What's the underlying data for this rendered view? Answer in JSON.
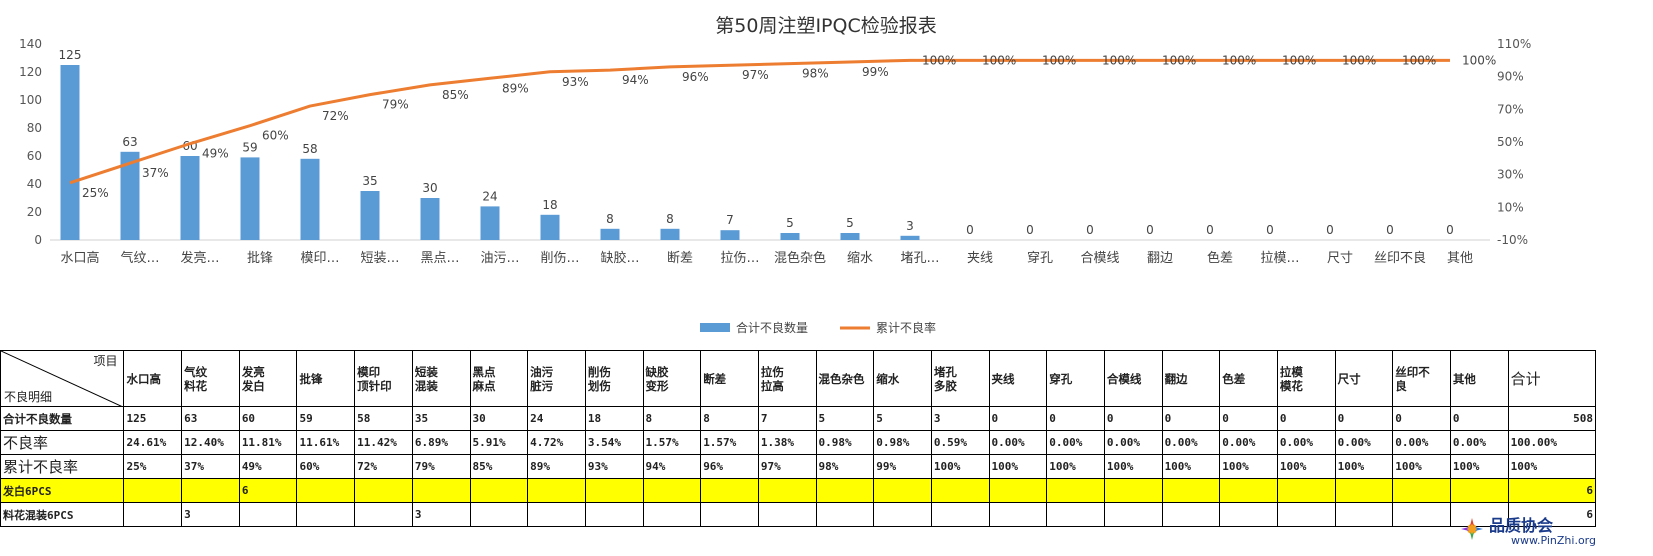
{
  "chart_data": {
    "type": "bar",
    "title": "第50周注塑IPQC检验报表",
    "categories": [
      "水口高",
      "气纹…",
      "发亮…",
      "批锋",
      "模印…",
      "短装…",
      "黑点…",
      "油污…",
      "削伤…",
      "缺胶…",
      "断差",
      "拉伤…",
      "混色杂色",
      "缩水",
      "堵孔…",
      "夹线",
      "穿孔",
      "合模线",
      "翻边",
      "色差",
      "拉模…",
      "尺寸",
      "丝印不良",
      "其他"
    ],
    "series": [
      {
        "name": "合计不良数量",
        "type": "bar",
        "axis": "left",
        "color": "#5b9bd5",
        "values": [
          125,
          63,
          60,
          59,
          58,
          35,
          30,
          24,
          18,
          8,
          8,
          7,
          5,
          5,
          3,
          0,
          0,
          0,
          0,
          0,
          0,
          0,
          0,
          0
        ],
        "labels": [
          "125",
          "63",
          "60",
          "59",
          "58",
          "35",
          "30",
          "24",
          "18",
          "8",
          "8",
          "7",
          "5",
          "5",
          "3",
          "0",
          "0",
          "0",
          "0",
          "0",
          "0",
          "0",
          "0",
          "0"
        ]
      },
      {
        "name": "累计不良率",
        "type": "line",
        "axis": "right",
        "color": "#ed7d31",
        "values": [
          25,
          37,
          49,
          60,
          72,
          79,
          85,
          89,
          93,
          94,
          96,
          97,
          98,
          99,
          100,
          100,
          100,
          100,
          100,
          100,
          100,
          100,
          100,
          100
        ],
        "labels": [
          "25%",
          "37%",
          "49%",
          "60%",
          "72%",
          "79%",
          "85%",
          "89%",
          "93%",
          "94%",
          "96%",
          "97%",
          "98%",
          "99%",
          "100%",
          "100%",
          "100%",
          "100%",
          "100%",
          "100%",
          "100%",
          "100%",
          "100%",
          "100%"
        ]
      }
    ],
    "ylim": [
      0,
      140
    ],
    "yticks": [
      "0",
      "20",
      "40",
      "60",
      "80",
      "100",
      "120",
      "140"
    ],
    "y2lim": [
      -10,
      110
    ],
    "y2ticks": [
      "-10%",
      "10%",
      "30%",
      "50%",
      "70%",
      "90%",
      "110%"
    ],
    "grid": false,
    "legend_position": "bottom"
  },
  "table": {
    "corner_top": "项目",
    "corner_bottom": "不良明细",
    "headers": [
      "水口高",
      "气纹\n料花",
      "发亮\n发白",
      "批锋",
      "模印\n顶针印",
      "短装\n混装",
      "黑点\n麻点",
      "油污\n脏污",
      "削伤\n划伤",
      "缺胶\n变形",
      "断差",
      "拉伤\n拉高",
      "混色杂色",
      "缩水",
      "堵孔\n多胶",
      "夹线",
      "穿孔",
      "合模线",
      "翻边",
      "色差",
      "拉模\n模花",
      "尺寸",
      "丝印不\n良",
      "其他",
      "合计"
    ],
    "rows": [
      {
        "label": "合计不良数量",
        "values": [
          "125",
          "63",
          "60",
          "59",
          "58",
          "35",
          "30",
          "24",
          "18",
          "8",
          "8",
          "7",
          "5",
          "5",
          "3",
          "0",
          "0",
          "0",
          "0",
          "0",
          "0",
          "0",
          "0",
          "0"
        ],
        "total": "508"
      },
      {
        "label": "不良率",
        "values": [
          "24.61%",
          "12.40%",
          "11.81%",
          "11.61%",
          "11.42%",
          "6.89%",
          "5.91%",
          "4.72%",
          "3.54%",
          "1.57%",
          "1.57%",
          "1.38%",
          "0.98%",
          "0.98%",
          "0.59%",
          "0.00%",
          "0.00%",
          "0.00%",
          "0.00%",
          "0.00%",
          "0.00%",
          "0.00%",
          "0.00%",
          "0.00%"
        ],
        "total": "100.00%"
      },
      {
        "label": "累计不良率",
        "values": [
          "25%",
          "37%",
          "49%",
          "60%",
          "72%",
          "79%",
          "85%",
          "89%",
          "93%",
          "94%",
          "96%",
          "97%",
          "98%",
          "99%",
          "100%",
          "100%",
          "100%",
          "100%",
          "100%",
          "100%",
          "100%",
          "100%",
          "100%",
          "100%"
        ],
        "total": "100%"
      }
    ],
    "detail_rows": [
      {
        "label": "发白6PCS",
        "values": [
          "",
          "",
          "6",
          "",
          "",
          "",
          "",
          "",
          "",
          "",
          "",
          "",
          "",
          "",
          "",
          "",
          "",
          "",
          "",
          "",
          "",
          "",
          "",
          ""
        ],
        "total": "6",
        "highlight": true
      },
      {
        "label": "料花混装6PCS",
        "values": [
          "",
          "3",
          "",
          "",
          "",
          "3",
          "",
          "",
          "",
          "",
          "",
          "",
          "",
          "",
          "",
          "",
          "",
          "",
          "",
          "",
          "",
          "",
          "",
          ""
        ],
        "total": "6",
        "highlight": false
      }
    ]
  },
  "watermark": {
    "name": "品质协会",
    "url": "www.PinZhi.org"
  }
}
